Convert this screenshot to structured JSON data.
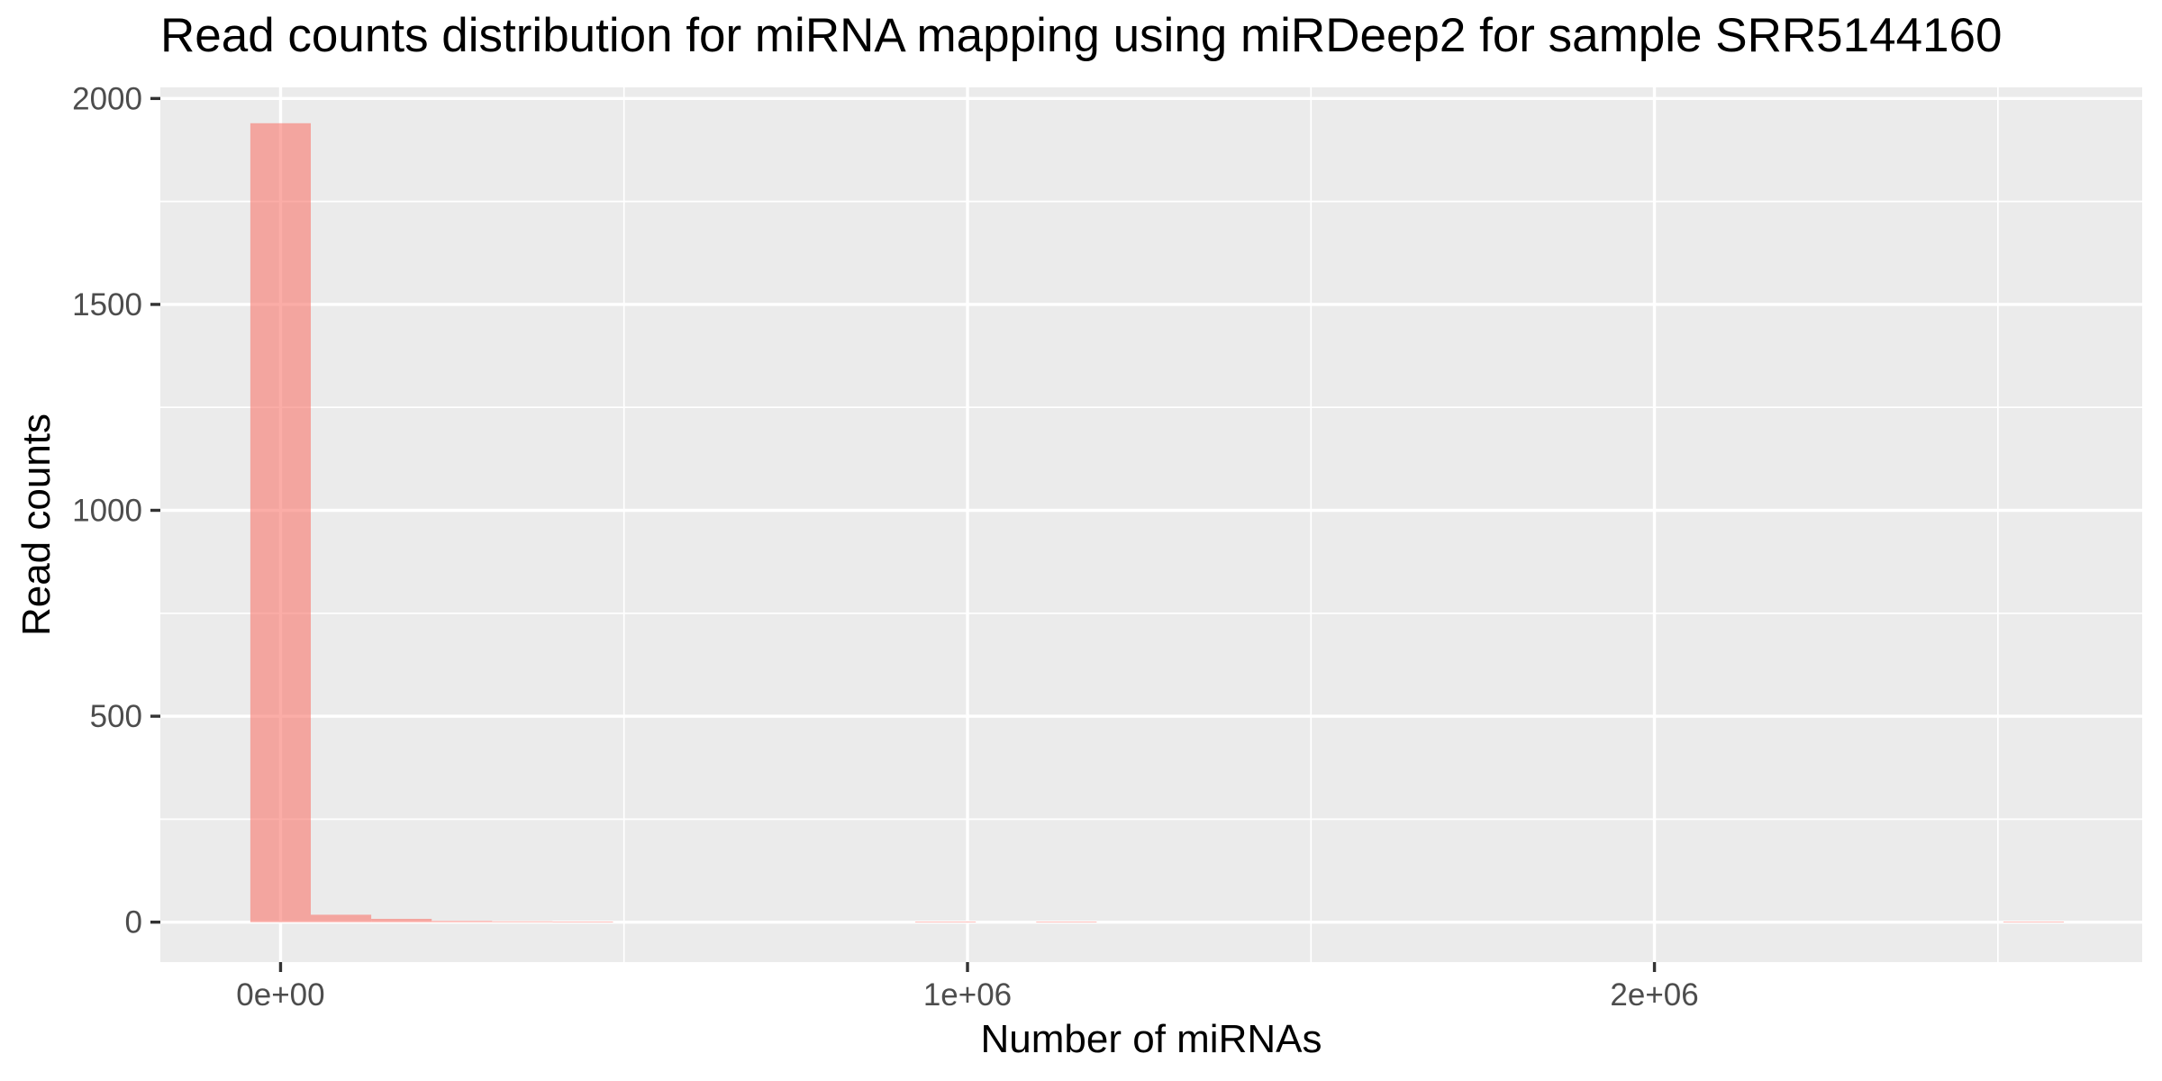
{
  "chart_data": {
    "type": "bar",
    "title": "Read counts distribution for miRNA mapping using miRDeep2 for sample SRR5144160",
    "xlabel": "Number of miRNAs",
    "ylabel": "Read counts",
    "xlim": [
      -175000,
      2710000
    ],
    "ylim": [
      -97,
      2027
    ],
    "x_ticks": [
      {
        "value": 0,
        "label": "0e+00"
      },
      {
        "value": 1000000,
        "label": "1e+06"
      },
      {
        "value": 2000000,
        "label": "2e+06"
      }
    ],
    "x_minor_ticks": [
      500000,
      1500000,
      2500000
    ],
    "y_ticks": [
      {
        "value": 0,
        "label": "0"
      },
      {
        "value": 500,
        "label": "500"
      },
      {
        "value": 1000,
        "label": "1000"
      },
      {
        "value": 1500,
        "label": "1500"
      },
      {
        "value": 2000,
        "label": "2000"
      }
    ],
    "y_minor_ticks": [
      250,
      750,
      1250,
      1750
    ],
    "bin_width": 88000,
    "bins": [
      {
        "x": 0,
        "count": 1940
      },
      {
        "x": 88000,
        "count": 18
      },
      {
        "x": 176000,
        "count": 8
      },
      {
        "x": 264000,
        "count": 3
      },
      {
        "x": 352000,
        "count": 2
      },
      {
        "x": 440000,
        "count": 1
      },
      {
        "x": 968000,
        "count": 1
      },
      {
        "x": 1144000,
        "count": 1
      },
      {
        "x": 2552000,
        "count": 1
      }
    ],
    "fill": "#f8766d",
    "fill_opacity": 0.6,
    "panel_background": "#ebebeb",
    "grid": true,
    "legend": "none"
  }
}
